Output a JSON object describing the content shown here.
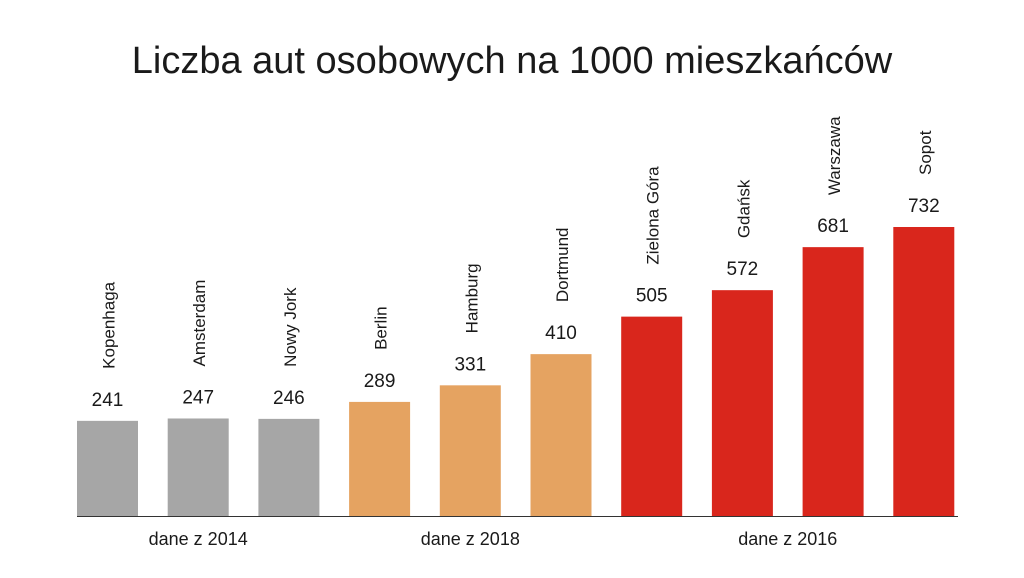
{
  "chart_data": {
    "type": "bar",
    "title": "Liczba aut osobowych na 1000 mieszkańców",
    "xlabel": "",
    "ylabel": "",
    "ylim": [
      0,
      800
    ],
    "grid": false,
    "categories": [
      "Kopenhaga",
      "Amsterdam",
      "Nowy Jork",
      "Berlin",
      "Hamburg",
      "Dortmund",
      "Zielona Góra",
      "Gdańsk",
      "Warszawa",
      "Sopot"
    ],
    "values": [
      241,
      247,
      246,
      289,
      331,
      410,
      505,
      572,
      681,
      732
    ],
    "groups": [
      {
        "label": "dane z 2014",
        "members": [
          "Kopenhaga",
          "Amsterdam",
          "Nowy Jork"
        ],
        "color": "#a6a6a6"
      },
      {
        "label": "dane z 2018",
        "members": [
          "Berlin",
          "Hamburg",
          "Dortmund"
        ],
        "color": "#e5a361"
      },
      {
        "label": "dane z 2016",
        "members": [
          "Zielona Góra",
          "Gdańsk",
          "Warszawa",
          "Sopot"
        ],
        "color": "#d9261c"
      }
    ]
  }
}
